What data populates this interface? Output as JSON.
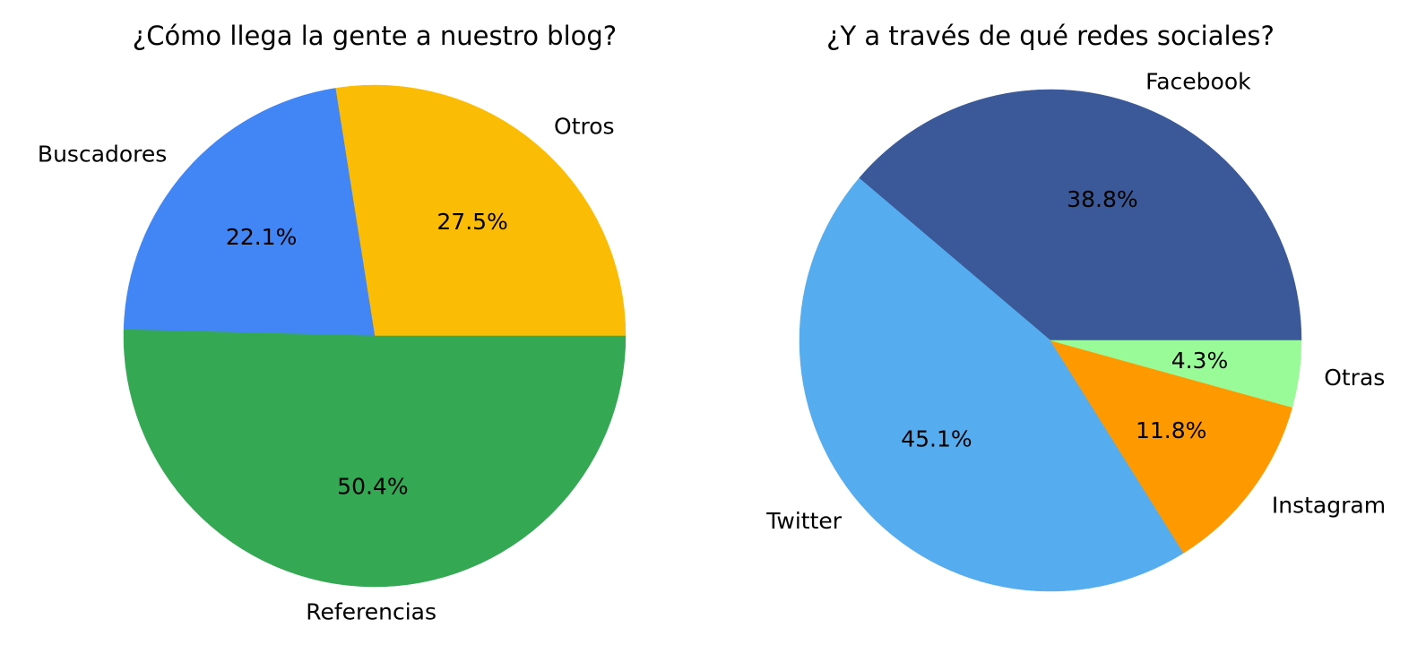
{
  "chart_data": [
    {
      "type": "pie",
      "title": "¿Cómo llega la gente a nuestro blog?",
      "start_angle_deg": 0,
      "direction": "counterclockwise",
      "slices": [
        {
          "label": "Otros",
          "value": 27.5,
          "pct_label": "27.5%",
          "color": "#FBBC05"
        },
        {
          "label": "Buscadores",
          "value": 22.1,
          "pct_label": "22.1%",
          "color": "#4285F4"
        },
        {
          "label": "Referencias",
          "value": 50.4,
          "pct_label": "50.4%",
          "color": "#34A853"
        }
      ]
    },
    {
      "type": "pie",
      "title": "¿Y a través de qué redes sociales?",
      "start_angle_deg": 0,
      "direction": "counterclockwise",
      "slices": [
        {
          "label": "Facebook",
          "value": 38.8,
          "pct_label": "38.8%",
          "color": "#3B5998"
        },
        {
          "label": "Twitter",
          "value": 45.1,
          "pct_label": "45.1%",
          "color": "#55ACEE"
        },
        {
          "label": "Instagram",
          "value": 11.8,
          "pct_label": "11.8%",
          "color": "#FF9900"
        },
        {
          "label": "Otras",
          "value": 4.3,
          "pct_label": "4.3%",
          "color": "#98FB98"
        }
      ]
    }
  ]
}
